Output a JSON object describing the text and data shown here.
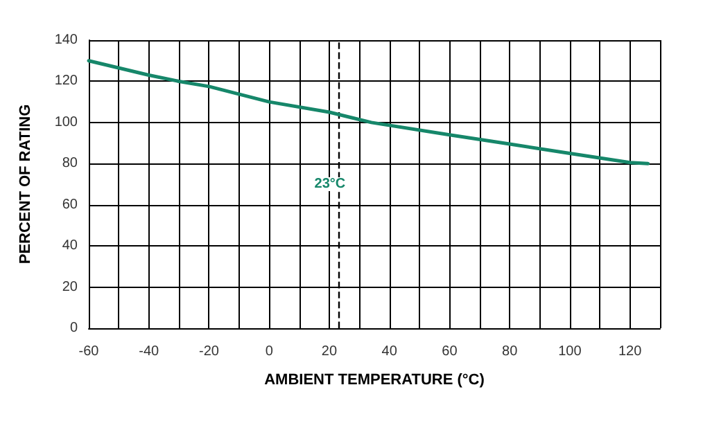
{
  "chart_data": {
    "type": "line",
    "xlabel": "AMBIENT TEMPERATURE (°C)",
    "ylabel": "PERCENT OF RATING",
    "x": [
      -60,
      -40,
      -30,
      -20,
      0,
      20,
      34,
      60,
      80,
      100,
      120,
      126
    ],
    "series": [
      {
        "color": "#16876a",
        "values": [
          130,
          123,
          120,
          117.5,
          110,
          105,
          100,
          94,
          89.5,
          85,
          80.5,
          80
        ]
      }
    ],
    "xlim": [
      -60,
      130
    ],
    "xticks": [
      -60,
      {
        "value": -50,
        "label": null
      },
      -40,
      {
        "value": -30,
        "label": null
      },
      -20,
      {
        "value": -10,
        "label": null
      },
      0,
      {
        "value": 10,
        "label": null
      },
      20,
      {
        "value": 30,
        "label": null
      },
      40,
      {
        "value": 50,
        "label": null
      },
      60,
      {
        "value": 70,
        "label": null
      },
      80,
      {
        "value": 90,
        "label": null
      },
      100,
      {
        "value": 110,
        "label": null
      },
      120,
      {
        "value": 130,
        "label": null
      }
    ],
    "ylim": [
      0,
      140
    ],
    "yticks": [
      0,
      20,
      40,
      60,
      80,
      100,
      120,
      140
    ],
    "ref_lines": [
      {
        "axis": "x",
        "value": 23,
        "label": "23°C",
        "color": "#000000",
        "line_style": "dashed"
      }
    ],
    "grid": true,
    "marker": "none",
    "line_style": "solid"
  }
}
